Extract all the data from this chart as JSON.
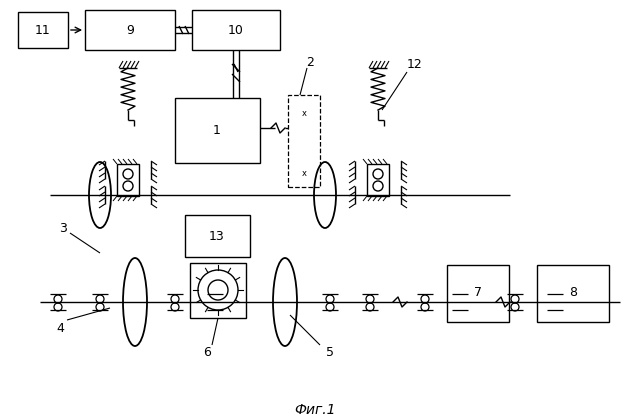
{
  "bg_color": "#ffffff",
  "line_color": "#000000",
  "fig_caption": "Фиг.1",
  "lw": 1.0
}
